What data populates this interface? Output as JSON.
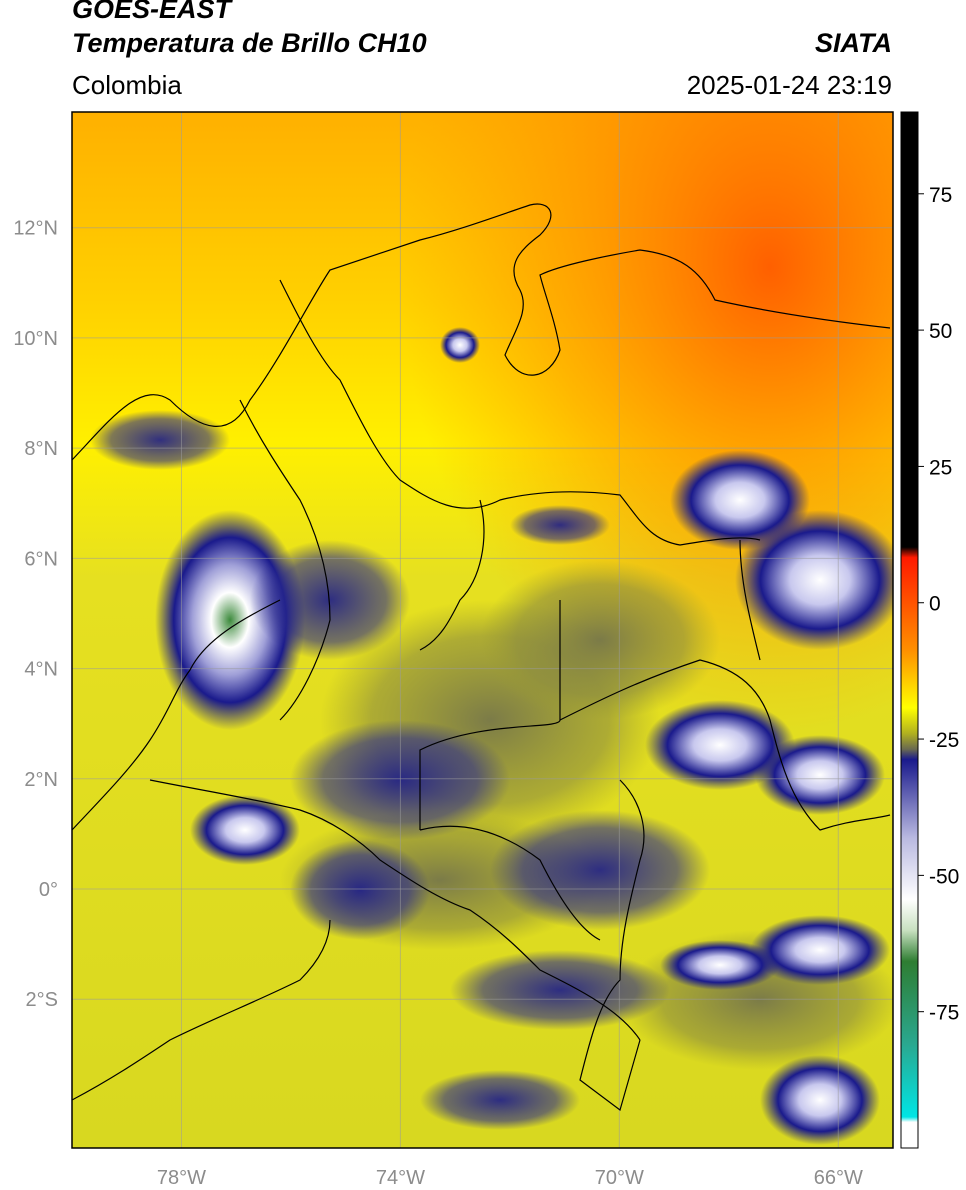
{
  "header": {
    "satellite": "GOES-EAST",
    "product": "Temperatura de Brillo CH10",
    "region": "Colombia",
    "agency": "SIATA",
    "datetime": "2025-01-24 23:19"
  },
  "map": {
    "lat_range": [
      -4.7,
      14.1
    ],
    "lon_range": [
      -80.0,
      -65.0
    ],
    "lat_ticks": [
      {
        "value": 12,
        "label": "12°N"
      },
      {
        "value": 10,
        "label": "10°N"
      },
      {
        "value": 8,
        "label": "8°N"
      },
      {
        "value": 6,
        "label": "6°N"
      },
      {
        "value": 4,
        "label": "4°N"
      },
      {
        "value": 2,
        "label": "2°N"
      },
      {
        "value": 0,
        "label": "0°"
      },
      {
        "value": -2,
        "label": "2°S"
      }
    ],
    "lon_ticks": [
      {
        "value": -78,
        "label": "78°W"
      },
      {
        "value": -74,
        "label": "74°W"
      },
      {
        "value": -70,
        "label": "70°W"
      },
      {
        "value": -66,
        "label": "66°W"
      }
    ],
    "grid": true
  },
  "colorbar": {
    "range": [
      -100,
      90
    ],
    "ticks": [
      {
        "value": 75,
        "label": "75"
      },
      {
        "value": 50,
        "label": "50"
      },
      {
        "value": 25,
        "label": "25"
      },
      {
        "value": 0,
        "label": "0"
      },
      {
        "value": -25,
        "label": "-25"
      },
      {
        "value": -50,
        "label": "-50"
      },
      {
        "value": -75,
        "label": "-75"
      }
    ],
    "colors": {
      "black": "#000000",
      "red": "#ff1a00",
      "orange": "#ff9000",
      "yellow": "#ffff00",
      "olive": "#7a7a40",
      "navy": "#1a1a8c",
      "white": "#ffffff",
      "green": "#2e7d32",
      "cyan": "#00e5e5"
    }
  }
}
